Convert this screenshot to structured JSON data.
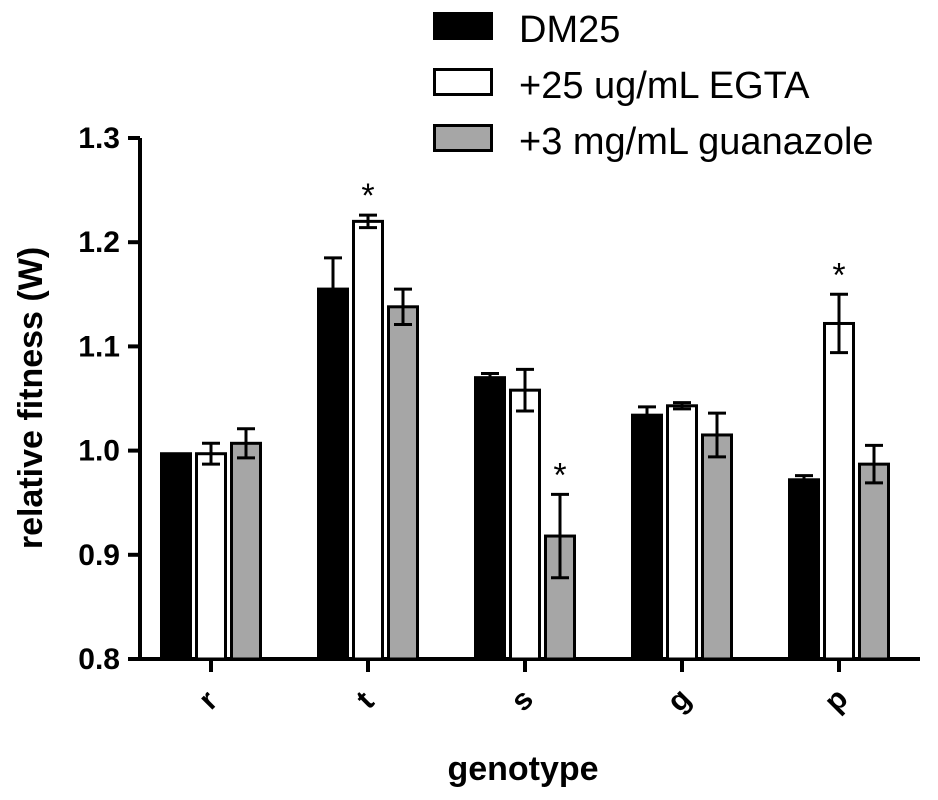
{
  "chart_data": {
    "type": "bar",
    "title": "",
    "xlabel": "genotype",
    "ylabel": "relative fitness (W)",
    "ylim": [
      0.8,
      1.3
    ],
    "yticks": [
      "0.8",
      "0.9",
      "1.0",
      "1.1",
      "1.2",
      "1.3"
    ],
    "ytick_values": [
      0.8,
      0.9,
      1.0,
      1.1,
      1.2,
      1.3
    ],
    "categories": [
      "r",
      "t",
      "s",
      "g",
      "p"
    ],
    "series": [
      {
        "name": "DM25",
        "color": "#000000",
        "values": [
          0.997,
          1.155,
          1.07,
          1.034,
          0.972
        ],
        "errors": [
          0.0,
          0.03,
          0.004,
          0.008,
          0.004
        ],
        "significant": [
          false,
          false,
          false,
          false,
          false
        ]
      },
      {
        "name": "+25 ug/mL EGTA",
        "color": "#ffffff",
        "values": [
          0.997,
          1.22,
          1.058,
          1.043,
          1.122
        ],
        "errors": [
          0.01,
          0.006,
          0.02,
          0.003,
          0.028
        ],
        "significant": [
          false,
          true,
          false,
          false,
          true
        ]
      },
      {
        "name": "+3 mg/mL guanazole",
        "color": "#a6a6a6",
        "values": [
          1.007,
          1.138,
          0.918,
          1.015,
          0.987
        ],
        "errors": [
          0.014,
          0.017,
          0.04,
          0.021,
          0.018
        ],
        "significant": [
          false,
          false,
          true,
          false,
          false
        ]
      }
    ],
    "significance_marker": "*",
    "legend_position": "top-right",
    "grid": false
  }
}
